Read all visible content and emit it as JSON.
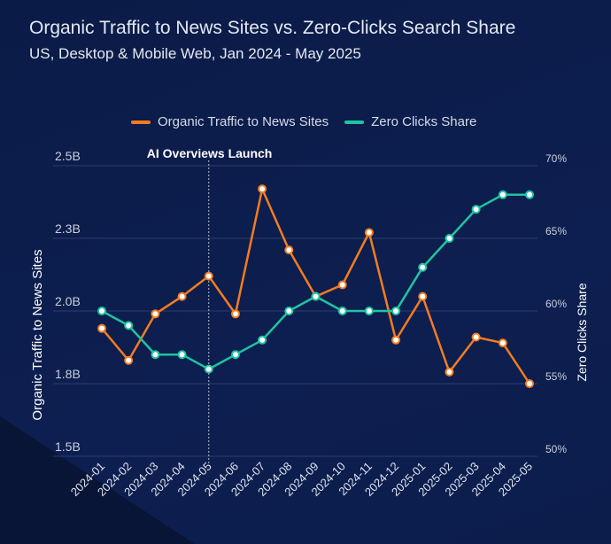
{
  "chart_data": {
    "type": "line",
    "title": "Organic Traffic to News Sites vs. Zero-Clicks Search Share",
    "subtitle": "US, Desktop & Mobile Web, Jan 2024 - May 2025",
    "x": [
      "2024-01",
      "2024-02",
      "2024-03",
      "2024-04",
      "2024-05",
      "2024-06",
      "2024-07",
      "2024-08",
      "2024-09",
      "2024-10",
      "2024-11",
      "2024-12",
      "2025-01",
      "2025-02",
      "2025-03",
      "2025-04",
      "2025-05"
    ],
    "series": [
      {
        "name": "Organic Traffic to News Sites",
        "axis": "left",
        "color": "#f47c20",
        "values": [
          1.94,
          1.83,
          1.99,
          2.05,
          2.12,
          1.99,
          2.42,
          2.21,
          2.05,
          2.09,
          2.27,
          1.9,
          2.05,
          1.79,
          1.91,
          1.89,
          1.75
        ]
      },
      {
        "name": "Zero Clicks Share",
        "axis": "right",
        "color": "#1fc4a0",
        "values": [
          60,
          59,
          57,
          57,
          56,
          57,
          58,
          60,
          61,
          60,
          60,
          60,
          63,
          65,
          67,
          68,
          68
        ]
      }
    ],
    "ylabel": "Organic Traffic to News Sites",
    "y2label": "Zero Clicks Share",
    "ylim": [
      1.5,
      2.5
    ],
    "y2lim": [
      50,
      70
    ],
    "yticks": [
      "1.5B",
      "1.8B",
      "2.0B",
      "2.3B",
      "2.5B"
    ],
    "y2ticks": [
      "50%",
      "55%",
      "60%",
      "65%",
      "70%"
    ],
    "grid": true,
    "legend": "top-center",
    "annotation": {
      "label": "AI Overviews Launch",
      "x": "2024-05"
    }
  }
}
